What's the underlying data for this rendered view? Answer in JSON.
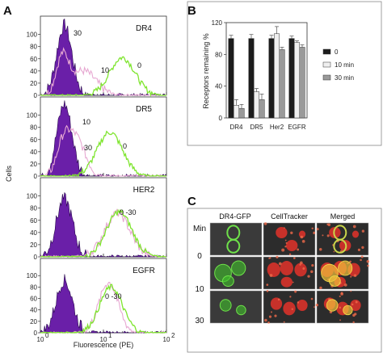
{
  "colors": {
    "filled": "#6a1fa8",
    "filled_edge": "#2b0a4f",
    "pink": "#e7a9d2",
    "green": "#7fe52f",
    "bar0": "#1c1c1c",
    "bar10": "#efefef",
    "bar30": "#9a9a9a"
  },
  "panel_a": {
    "letter": "A",
    "ylabel": "Cells",
    "xlabel": "Fluorescence (PE)",
    "yticks": [
      "0",
      "20",
      "40",
      "60",
      "80",
      "100"
    ],
    "xticks": [
      {
        "base": "10",
        "exp": "0"
      },
      {
        "base": "10",
        "exp": "1"
      },
      {
        "base": "10",
        "exp": "2"
      }
    ],
    "panels": [
      {
        "label": "DR4",
        "annotations": [
          "30",
          "10",
          "0"
        ]
      },
      {
        "label": "DR5",
        "annotations": [
          "10",
          "30",
          "0"
        ]
      },
      {
        "label": "HER2",
        "annotations": [
          "0 -30"
        ]
      },
      {
        "label": "EGFR",
        "annotations": [
          "0 -30"
        ]
      }
    ]
  },
  "chart_data": {
    "type": "bar",
    "title": "",
    "ylabel": "Receptors remaining %",
    "ylim": [
      0,
      120
    ],
    "yticks": [
      0,
      40,
      80,
      120
    ],
    "categories": [
      "DR4",
      "DR5",
      "Her2",
      "EGFR"
    ],
    "series": [
      {
        "name": "0",
        "values": [
          100,
          100,
          100,
          100
        ],
        "errors": [
          4,
          5,
          4,
          3
        ]
      },
      {
        "name": "10 min",
        "values": [
          16,
          33,
          106,
          95
        ],
        "errors": [
          7,
          4,
          9,
          2
        ]
      },
      {
        "name": "30 min",
        "values": [
          12,
          23,
          86,
          89
        ],
        "errors": [
          5,
          7,
          3,
          3
        ]
      }
    ],
    "legend_position": "right",
    "grid": false
  },
  "panel_b": {
    "letter": "B"
  },
  "panel_c": {
    "letter": "C",
    "col_headers": [
      "DR4-GFP",
      "CellTracker",
      "Merged"
    ],
    "row_header": "Min",
    "rows": [
      "0",
      "10",
      "30"
    ]
  }
}
